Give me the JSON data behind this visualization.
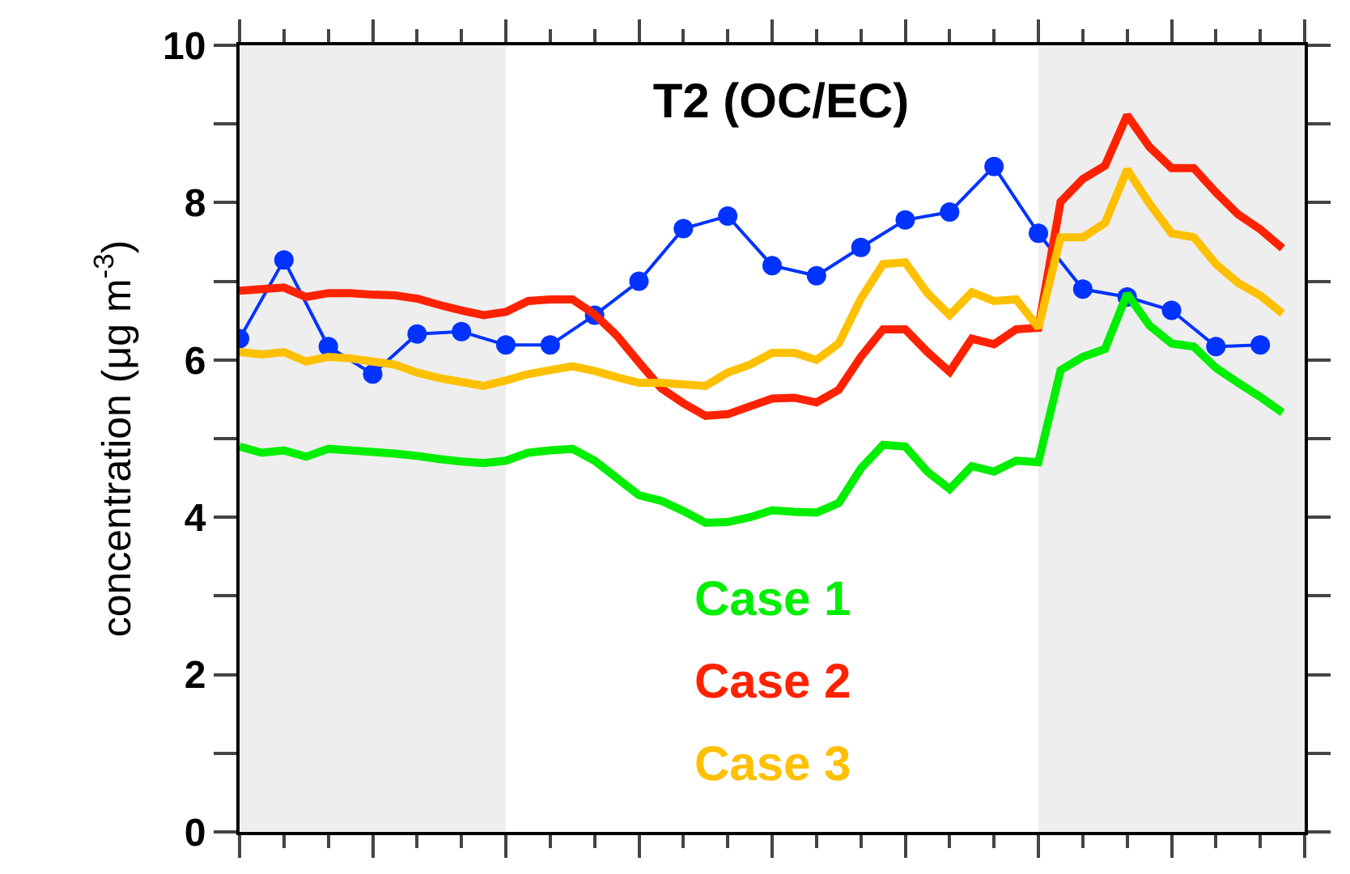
{
  "chart_data": {
    "type": "line",
    "title": "T2 (OC/EC)",
    "ylabel": "concentration (μg m$^{-3}$)",
    "categories": [
      null,
      null,
      null,
      null,
      null,
      null,
      null,
      null,
      null,
      null,
      null,
      null,
      null,
      null,
      null,
      null,
      null,
      null,
      null,
      null,
      null,
      null,
      null,
      null,
      null,
      null,
      null,
      null,
      null,
      null,
      null,
      null,
      null,
      null,
      null,
      null,
      null,
      null,
      null,
      null,
      null,
      null,
      null,
      null,
      null,
      null,
      null,
      null,
      null
    ],
    "ylim": [
      0,
      10
    ],
    "yticks": [
      0,
      {
        "value": 1,
        "label": null
      },
      2,
      {
        "value": 3,
        "label": null
      },
      4,
      {
        "value": 5,
        "label": null
      },
      6,
      {
        "value": 7,
        "label": null
      },
      8,
      {
        "value": 9,
        "label": null
      },
      10
    ],
    "tick_labels": "y",
    "grid": false,
    "legend": false,
    "line_style": "solid",
    "series": [
      {
        "color": "#0033ff",
        "marker": "circle",
        "values": [
          6.27,
          null,
          7.27,
          null,
          6.17,
          null,
          5.82,
          null,
          6.33,
          null,
          6.36,
          null,
          6.19,
          null,
          6.19,
          null,
          6.57,
          null,
          7.0,
          null,
          7.67,
          null,
          7.83,
          null,
          7.2,
          null,
          7.07,
          null,
          7.43,
          null,
          7.78,
          null,
          7.88,
          null,
          8.46,
          null,
          7.61,
          null,
          6.9,
          null,
          6.8,
          null,
          6.63,
          null,
          6.17,
          null,
          6.19,
          null,
          null
        ]
      },
      {
        "name": "Case 1",
        "color": "#00ee00",
        "marker": "none",
        "values": [
          4.9,
          4.82,
          4.85,
          4.77,
          4.87,
          4.85,
          4.83,
          4.81,
          4.78,
          4.74,
          4.71,
          4.69,
          4.72,
          4.82,
          4.85,
          4.87,
          4.72,
          4.5,
          4.28,
          4.21,
          4.08,
          3.93,
          3.94,
          4.0,
          4.09,
          4.07,
          4.06,
          4.18,
          4.62,
          4.92,
          4.9,
          4.58,
          4.36,
          4.65,
          4.58,
          4.72,
          4.7,
          5.87,
          6.04,
          6.14,
          6.84,
          6.44,
          6.21,
          6.17,
          5.9,
          5.71,
          5.53,
          5.33,
          null
        ]
      },
      {
        "name": "Case 2",
        "color": "#ff2200",
        "marker": "none",
        "values": [
          6.88,
          6.9,
          6.92,
          6.8,
          6.85,
          6.85,
          6.83,
          6.82,
          6.78,
          6.7,
          6.63,
          6.57,
          6.61,
          6.75,
          6.77,
          6.77,
          6.58,
          6.31,
          5.97,
          5.64,
          5.45,
          5.29,
          5.31,
          5.41,
          5.51,
          5.52,
          5.46,
          5.62,
          6.04,
          6.39,
          6.39,
          6.1,
          5.85,
          6.27,
          6.2,
          6.39,
          6.41,
          8.01,
          8.3,
          8.47,
          9.11,
          8.71,
          8.44,
          8.44,
          8.13,
          7.85,
          7.66,
          7.42,
          null
        ]
      },
      {
        "name": "Case 3",
        "color": "#ffc000",
        "marker": "none",
        "values": [
          6.1,
          6.07,
          6.1,
          5.98,
          6.04,
          6.02,
          5.98,
          5.94,
          5.84,
          5.77,
          5.72,
          5.67,
          5.74,
          5.82,
          5.87,
          5.92,
          5.86,
          5.78,
          5.71,
          5.71,
          5.69,
          5.67,
          5.84,
          5.94,
          6.09,
          6.09,
          6.0,
          6.21,
          6.78,
          7.22,
          7.24,
          6.85,
          6.57,
          6.86,
          6.75,
          6.77,
          6.41,
          7.56,
          7.56,
          7.74,
          8.42,
          7.99,
          7.61,
          7.56,
          7.22,
          6.98,
          6.82,
          6.59,
          null
        ]
      }
    ]
  }
}
